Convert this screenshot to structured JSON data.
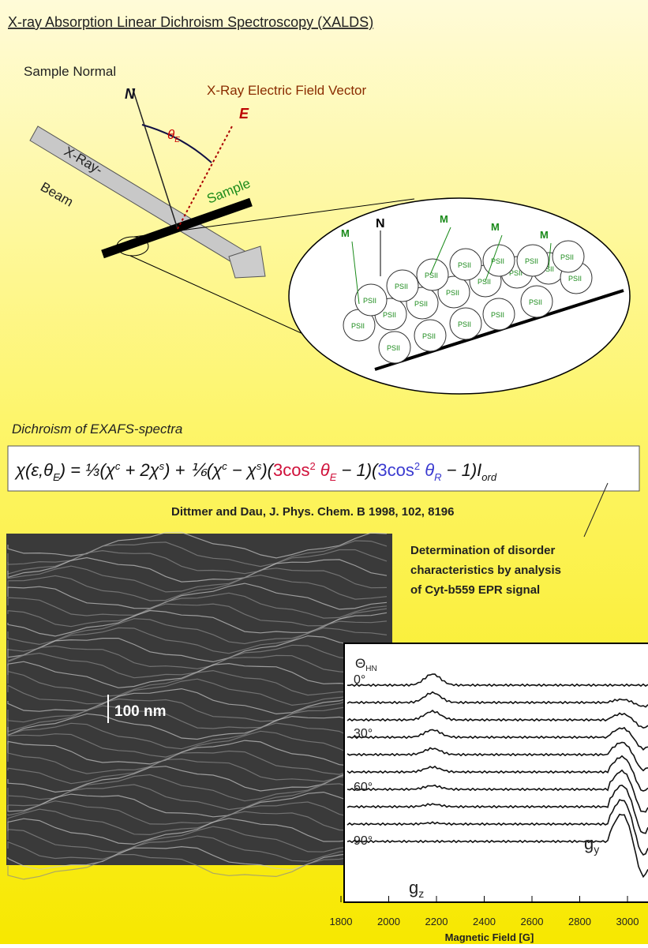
{
  "header": {
    "title": "X-ray Absorption Linear Dichroism Spectroscopy (XALDS)"
  },
  "geometry": {
    "sample_normal": "Sample Normal",
    "normal_symbol": "N",
    "field_vector": "X-Ray Electric Field Vector",
    "field_symbol": "E",
    "angle_symbol": "θ",
    "angle_sub": "E",
    "beam_line1": "X-Ray-",
    "beam_line2": "Beam",
    "sample": "Sample"
  },
  "zoom": {
    "normal_symbol": "N",
    "moment_symbol": "M",
    "psii_label": "PSII"
  },
  "equation": {
    "heading": "Dichroism of EXAFS-spectra",
    "parts": [
      "χ(ε,θ",
      "E",
      ") = ⅓(χ",
      "c",
      " + 2χ",
      "s",
      ") + ⅙(χ",
      "c",
      " − χ",
      "s",
      ")(",
      "3cos",
      "2",
      " θ",
      "E",
      " − 1)(",
      "3cos",
      "2",
      " θ",
      "R",
      " − 1)",
      "I",
      "ord"
    ],
    "citation": "Dittmer and Dau, J. Phys. Chem. B 1998, 102, 8196"
  },
  "epr": {
    "note": [
      "Determination of disorder",
      "characteristics by analysis",
      "of Cyt-b559 EPR signal"
    ],
    "scale_bar": "100 nm",
    "angle_axis": "Θ",
    "angle_sub": "HN",
    "angles": [
      "0°",
      "30°",
      "60°",
      "90°"
    ],
    "gz": "g",
    "gz_sub": "z",
    "gy": "g",
    "gy_sub": "y",
    "xticks": [
      1800,
      2000,
      2200,
      2400,
      2600,
      2800,
      3000
    ],
    "xlabel": "Magnetic Field [G]"
  }
}
